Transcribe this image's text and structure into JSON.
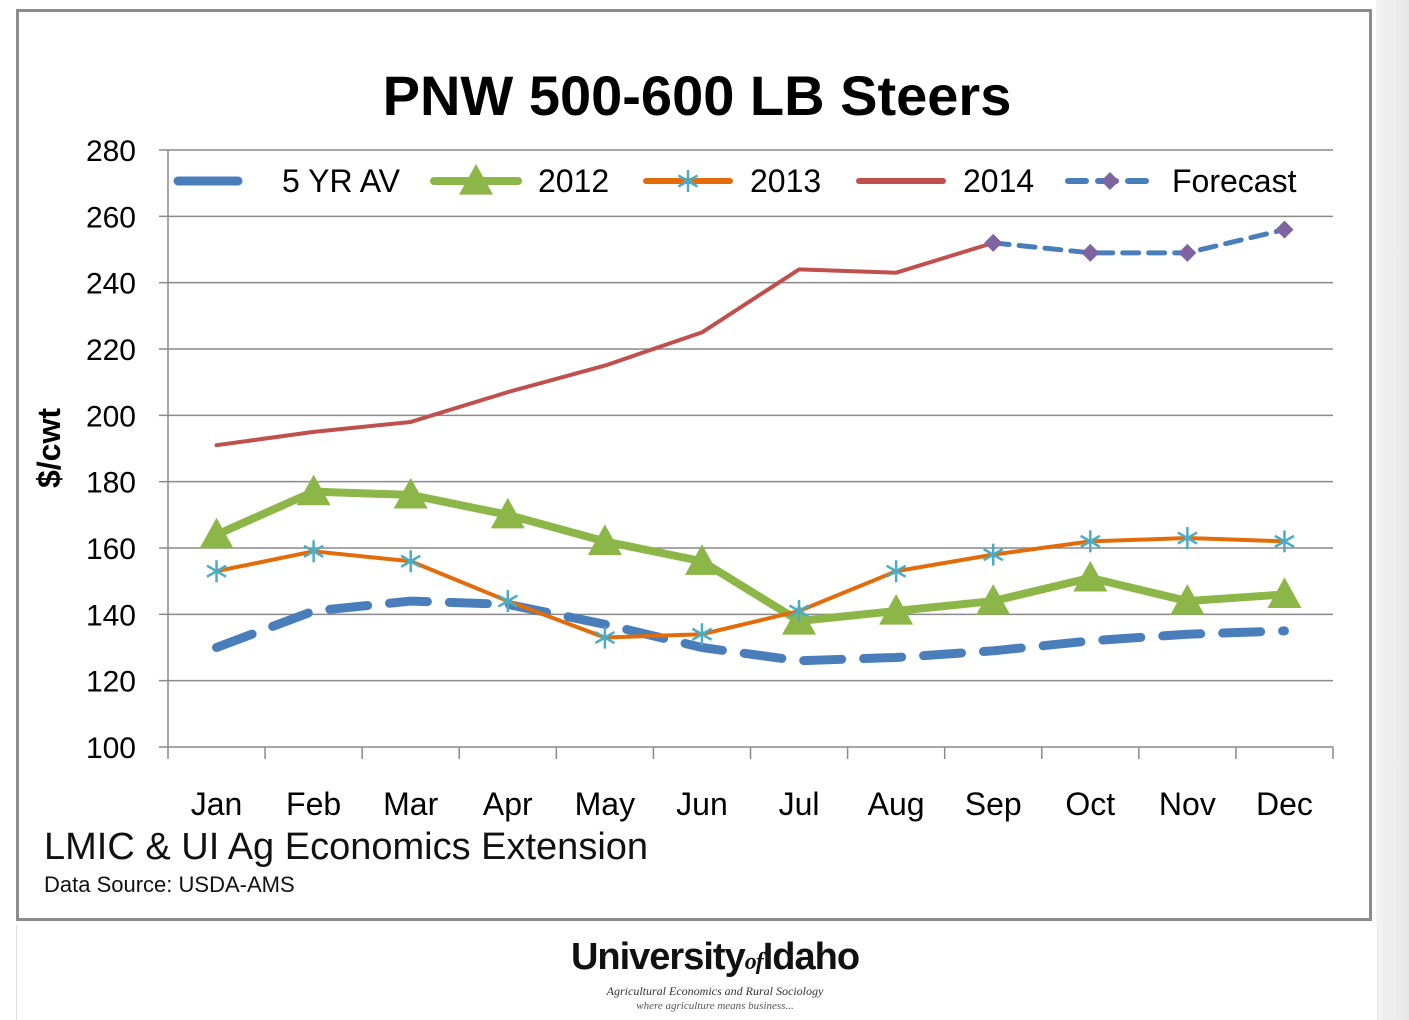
{
  "chart_data": {
    "type": "line",
    "title": "PNW 500-600 LB Steers",
    "ylabel": "$/cwt",
    "xlabel": "",
    "ylim": [
      100,
      280
    ],
    "yticks": [
      100,
      120,
      140,
      160,
      180,
      200,
      220,
      240,
      260,
      280
    ],
    "categories": [
      "Jan",
      "Feb",
      "Mar",
      "Apr",
      "May",
      "Jun",
      "Jul",
      "Aug",
      "Sep",
      "Oct",
      "Nov",
      "Dec"
    ],
    "grid": true,
    "legend_position": "top",
    "series": [
      {
        "name": "5 YR AV",
        "color": "#4a7ebb",
        "style": "dashed-thick",
        "marker": "none",
        "values": [
          130,
          141,
          144,
          143,
          137,
          130,
          126,
          127,
          129,
          132,
          134,
          135
        ]
      },
      {
        "name": "2012",
        "color": "#8db648",
        "style": "solid-thick",
        "marker": "triangle",
        "values": [
          164,
          177,
          176,
          170,
          162,
          156,
          138,
          141,
          144,
          151,
          144,
          146
        ]
      },
      {
        "name": "2013",
        "color": "#e36c0a",
        "style": "solid",
        "marker": "asterisk",
        "values": [
          153,
          159,
          156,
          144,
          133,
          134,
          141,
          153,
          158,
          162,
          163,
          162
        ]
      },
      {
        "name": "2014",
        "color": "#c0504d",
        "style": "solid",
        "marker": "none",
        "values": [
          191,
          195,
          198,
          207,
          215,
          225,
          244,
          243,
          252,
          null,
          null,
          null
        ]
      },
      {
        "name": "Forecast",
        "color": "#4a7ebb",
        "marker_color": "#8064a2",
        "style": "dashed",
        "marker": "diamond",
        "values": [
          null,
          null,
          null,
          null,
          null,
          null,
          null,
          null,
          252,
          249,
          249,
          256
        ]
      }
    ]
  },
  "credits": {
    "main": "LMIC & UI Ag Economics Extension",
    "source": "Data Source: USDA-AMS"
  },
  "logo": {
    "name_part1": "University",
    "name_of": "of",
    "name_part2": "Idaho",
    "subtitle": "Agricultural Economics and Rural Sociology",
    "tagline": "where agriculture means business..."
  }
}
